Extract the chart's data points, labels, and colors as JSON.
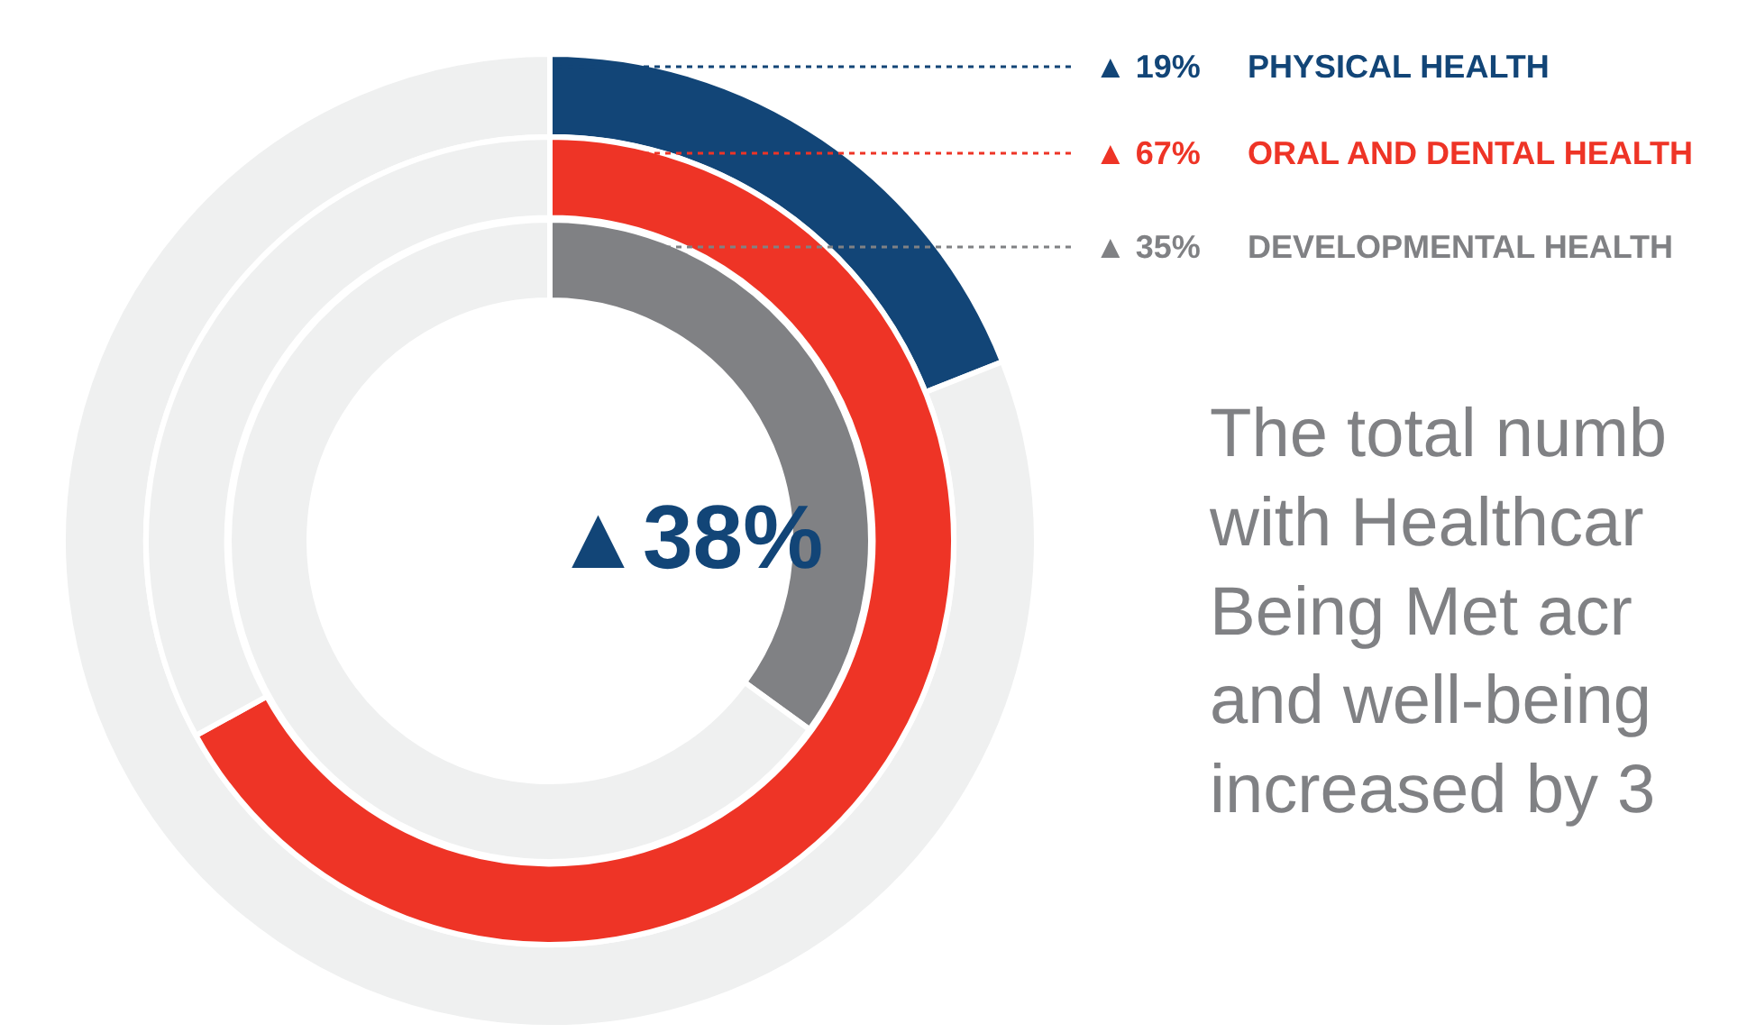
{
  "chart_data": {
    "type": "donut",
    "series": [
      {
        "name": "PHYSICAL HEALTH",
        "colors": [
          "#124577",
          "#eff0f0"
        ],
        "values": [
          19,
          81
        ],
        "value_labels": [
          "▲ 19%",
          null
        ]
      },
      {
        "name": "ORAL AND DENTAL HEALTH",
        "colors": [
          "#ee3426",
          "#eff0f0"
        ],
        "values": [
          67,
          33
        ],
        "value_labels": [
          "▲ 67%",
          null
        ]
      },
      {
        "name": "DEVELOPMENTAL HEALTH",
        "colors": [
          "#808184",
          "#eff0f0"
        ],
        "values": [
          35,
          65
        ],
        "value_labels": [
          "▲ 35%",
          null
        ]
      }
    ],
    "annotations": [
      "▲38%",
      "The total numb\nwith Healthcar\nBeing Met acr\nand well-being\nincreased by 3"
    ]
  }
}
